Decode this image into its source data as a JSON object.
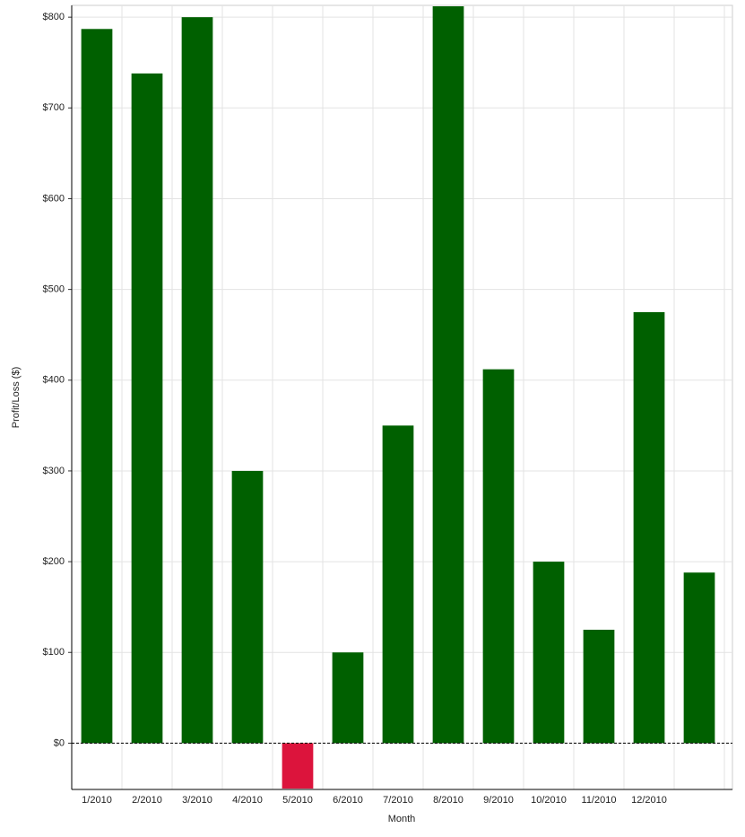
{
  "chart_data": {
    "type": "bar",
    "x_label": "Month",
    "y_label": "Profit/Loss ($)",
    "categories": [
      "1/2010",
      "2/2010",
      "3/2010",
      "4/2010",
      "5/2010",
      "6/2010",
      "7/2010",
      "8/2010",
      "9/2010",
      "10/2010",
      "11/2010",
      "12/2010",
      null
    ],
    "values": [
      787,
      738,
      800,
      300,
      -50,
      100,
      350,
      812,
      412,
      200,
      125,
      475,
      188
    ],
    "color": "#006000",
    "negative_color": "#dc143c",
    "ylim": [
      -51,
      813
    ],
    "yticks": [
      {
        "value": 0,
        "label": "$0"
      },
      {
        "value": 100,
        "label": "$100"
      },
      {
        "value": 200,
        "label": "$200"
      },
      {
        "value": 300,
        "label": "$300"
      },
      {
        "value": 400,
        "label": "$400"
      },
      {
        "value": 500,
        "label": "$500"
      },
      {
        "value": 600,
        "label": "$600"
      },
      {
        "value": 700,
        "label": "$700"
      },
      {
        "value": 800,
        "label": "$800"
      }
    ],
    "grid": true,
    "zero_line": true
  }
}
